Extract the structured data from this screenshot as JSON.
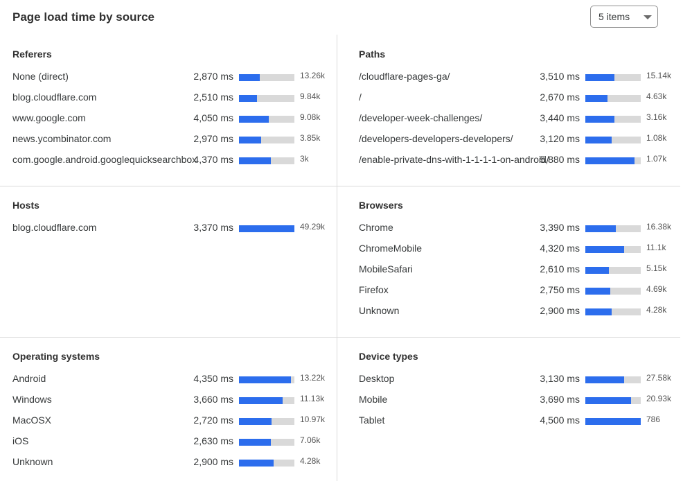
{
  "header": {
    "title": "Page load time by source",
    "select_value": "5 items"
  },
  "colors": {
    "bar_fill": "#2c6ded",
    "bar_track": "#d9d9d9"
  },
  "panels": [
    {
      "title": "Referers",
      "rows": [
        {
          "label": "None (direct)",
          "ms": "2,870 ms",
          "count": "13.26k",
          "fill_pct": 38
        },
        {
          "label": "blog.cloudflare.com",
          "ms": "2,510 ms",
          "count": "9.84k",
          "fill_pct": 33
        },
        {
          "label": "www.google.com",
          "ms": "4,050 ms",
          "count": "9.08k",
          "fill_pct": 54
        },
        {
          "label": "news.ycombinator.com",
          "ms": "2,970 ms",
          "count": "3.85k",
          "fill_pct": 40
        },
        {
          "label": "com.google.android.googlequicksearchbox",
          "ms": "4,370 ms",
          "count": "3k",
          "fill_pct": 58
        }
      ]
    },
    {
      "title": "Paths",
      "rows": [
        {
          "label": "/cloudflare-pages-ga/",
          "ms": "3,510 ms",
          "count": "15.14k",
          "fill_pct": 53
        },
        {
          "label": "/",
          "ms": "2,670 ms",
          "count": "4.63k",
          "fill_pct": 40
        },
        {
          "label": "/developer-week-challenges/",
          "ms": "3,440 ms",
          "count": "3.16k",
          "fill_pct": 52
        },
        {
          "label": "/developers-developers-developers/",
          "ms": "3,120 ms",
          "count": "1.08k",
          "fill_pct": 47
        },
        {
          "label": "/enable-private-dns-with-1-1-1-1-on-android/",
          "ms": "5,880 ms",
          "count": "1.07k",
          "fill_pct": 89
        }
      ]
    },
    {
      "title": "Hosts",
      "rows": [
        {
          "label": "blog.cloudflare.com",
          "ms": "3,370 ms",
          "count": "49.29k",
          "fill_pct": 100
        }
      ]
    },
    {
      "title": "Browsers",
      "rows": [
        {
          "label": "Chrome",
          "ms": "3,390 ms",
          "count": "16.38k",
          "fill_pct": 55
        },
        {
          "label": "ChromeMobile",
          "ms": "4,320 ms",
          "count": "11.1k",
          "fill_pct": 70
        },
        {
          "label": "MobileSafari",
          "ms": "2,610 ms",
          "count": "5.15k",
          "fill_pct": 42
        },
        {
          "label": "Firefox",
          "ms": "2,750 ms",
          "count": "4.69k",
          "fill_pct": 45
        },
        {
          "label": "Unknown",
          "ms": "2,900 ms",
          "count": "4.28k",
          "fill_pct": 47
        }
      ]
    },
    {
      "title": "Operating systems",
      "rows": [
        {
          "label": "Android",
          "ms": "4,350 ms",
          "count": "13.22k",
          "fill_pct": 94
        },
        {
          "label": "Windows",
          "ms": "3,660 ms",
          "count": "11.13k",
          "fill_pct": 79
        },
        {
          "label": "MacOSX",
          "ms": "2,720 ms",
          "count": "10.97k",
          "fill_pct": 59
        },
        {
          "label": "iOS",
          "ms": "2,630 ms",
          "count": "7.06k",
          "fill_pct": 57
        },
        {
          "label": "Unknown",
          "ms": "2,900 ms",
          "count": "4.28k",
          "fill_pct": 63
        }
      ]
    },
    {
      "title": "Device types",
      "rows": [
        {
          "label": "Desktop",
          "ms": "3,130 ms",
          "count": "27.58k",
          "fill_pct": 70
        },
        {
          "label": "Mobile",
          "ms": "3,690 ms",
          "count": "20.93k",
          "fill_pct": 82
        },
        {
          "label": "Tablet",
          "ms": "4,500 ms",
          "count": "786",
          "fill_pct": 100
        }
      ]
    }
  ]
}
